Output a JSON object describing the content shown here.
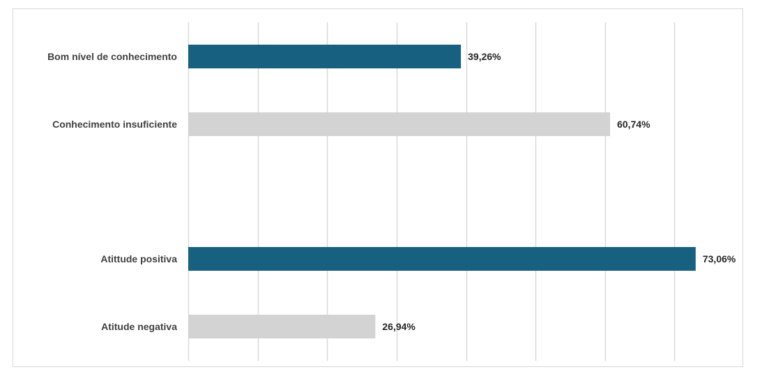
{
  "chart_data": {
    "type": "bar",
    "orientation": "horizontal",
    "title": "",
    "xlabel": "",
    "ylabel": "",
    "xlim": [
      0,
      80
    ],
    "grid": true,
    "tick_labels_visible": false,
    "colors": {
      "positive": "#17607f",
      "negative": "#d3d3d3",
      "grid": "#d9d9d9",
      "frame": "#d9d9d9"
    },
    "bars": [
      {
        "label": "Bom nível de conhecimento",
        "value": 39.26,
        "value_label": "39,26%",
        "color_key": "positive",
        "slot": 0
      },
      {
        "label": "Conhecimento insuficiente",
        "value": 60.74,
        "value_label": "60,74%",
        "color_key": "negative",
        "slot": 1
      },
      {
        "label": "Atittude positiva",
        "value": 73.06,
        "value_label": "73,06%",
        "color_key": "positive",
        "slot": 3
      },
      {
        "label": "Atitude negativa",
        "value": 26.94,
        "value_label": "26,94%",
        "color_key": "negative",
        "slot": 4
      }
    ]
  }
}
